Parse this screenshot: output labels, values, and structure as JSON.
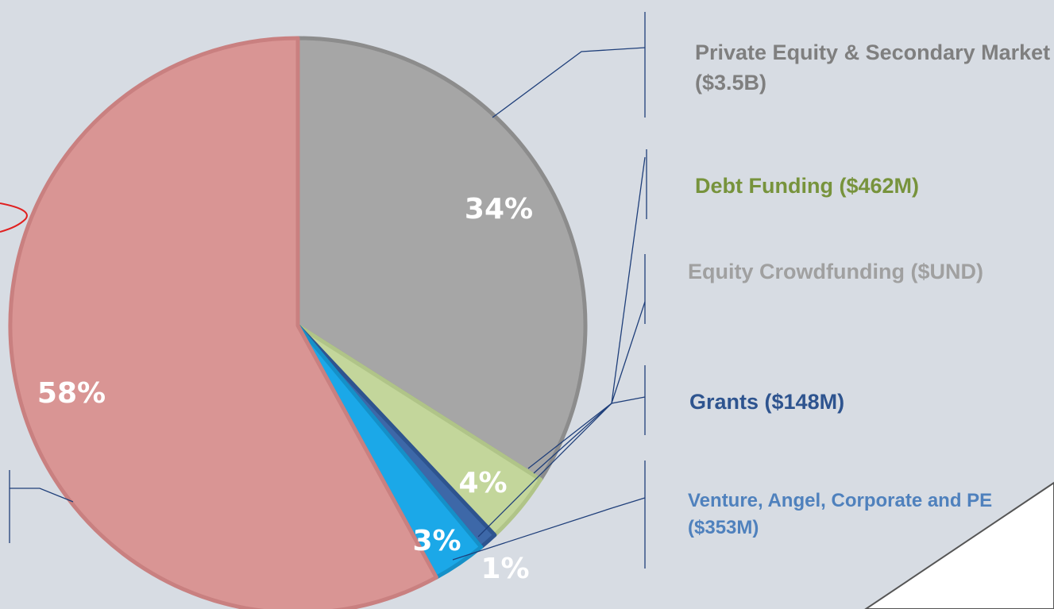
{
  "chart_data": {
    "type": "pie",
    "categories": [
      "Private Equity & Secondary Market ($3.5B)",
      "Debt Funding ($462M)",
      "Equity Crowdfunding ($UND)",
      "Grants ($148M)",
      "Venture, Angel, Corporate and PE ($353M)",
      null
    ],
    "values": [
      34,
      4,
      0,
      1,
      3,
      58
    ],
    "value_labels": [
      "34%",
      "4%",
      null,
      "1%",
      "3%",
      "58%"
    ],
    "colors": [
      "#a6a6a6",
      "#c3d69b",
      "#a6a6a6",
      "#3d68a8",
      "#1ba8e8",
      "#d99594"
    ],
    "label_colors": [
      "#7f7f7f",
      "#77933c",
      "#a0a0a0",
      "#2e548f",
      "#4f81bd",
      null
    ]
  }
}
